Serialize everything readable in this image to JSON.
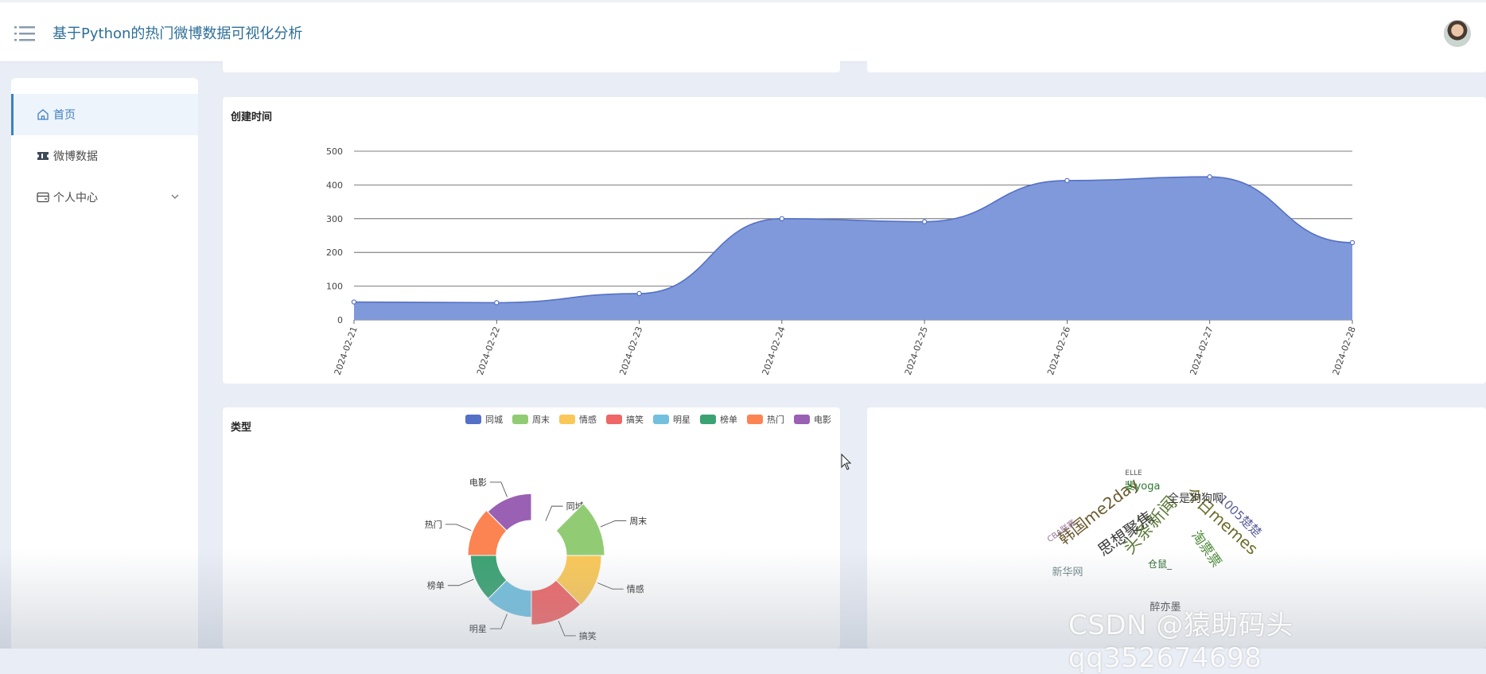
{
  "header": {
    "title": "基于Python的热门微博数据可视化分析"
  },
  "sidebar": {
    "items": [
      {
        "label": "首页",
        "icon": "home-icon",
        "active": true
      },
      {
        "label": "微博数据",
        "icon": "ticket-icon",
        "active": false
      },
      {
        "label": "个人中心",
        "icon": "wallet-icon",
        "active": false,
        "expandable": true
      }
    ]
  },
  "line_chart": {
    "title": "创建时间",
    "chart_data": {
      "type": "area",
      "x": [
        "2024-02-21",
        "2024-02-22",
        "2024-02-23",
        "2024-02-24",
        "2024-02-25",
        "2024-02-26",
        "2024-02-27",
        "2024-02-28"
      ],
      "values": [
        53,
        51,
        78,
        300,
        291,
        413,
        424,
        229
      ],
      "ylim": [
        0,
        500
      ],
      "yticks": [
        "0",
        "100",
        "200",
        "300",
        "400",
        "500"
      ],
      "grid": true,
      "colors": {
        "fill": "#8099da",
        "line": "#5570c6"
      }
    }
  },
  "pie_chart": {
    "title": "类型",
    "chart_data": {
      "type": "pie",
      "categories": [
        "同城",
        "周末",
        "情感",
        "搞笑",
        "明星",
        "榜单",
        "热门",
        "电影"
      ],
      "values": [
        2,
        100,
        92,
        90,
        70,
        68,
        75,
        70
      ],
      "legend_position": "top-right",
      "colors": [
        "#5470c6",
        "#91cc75",
        "#fac858",
        "#ee6666",
        "#73c0de",
        "#3ba272",
        "#fc8452",
        "#9a60b4"
      ]
    }
  },
  "word_cloud": {
    "words": [
      {
        "text": "头条新闻",
        "color": "#5e7a3a"
      },
      {
        "text": "今日memes",
        "color": "#6b6b2a"
      },
      {
        "text": "韩国me2day",
        "color": "#6a5a2e"
      },
      {
        "text": "思想聚焦",
        "color": "#3d3d3d"
      },
      {
        "text": "1005楚楚",
        "color": "#5a5f99"
      },
      {
        "text": "全是狗狗啊",
        "color": "#3d3d3d"
      },
      {
        "text": "淘票票",
        "color": "#4f8a3a"
      },
      {
        "text": "新华网",
        "color": "#6f8a8a"
      },
      {
        "text": "醉亦墨",
        "color": "#4a4a4a"
      },
      {
        "text": "斐yoga",
        "color": "#2b7a2b"
      },
      {
        "text": "仓鼠_",
        "color": "#2b6b2b"
      },
      {
        "text": "CBA联赛",
        "color": "#9a7a9a"
      },
      {
        "text": "ELLE",
        "color": "#555555"
      }
    ]
  },
  "watermark": "CSDN @猿助码头qq352674698"
}
